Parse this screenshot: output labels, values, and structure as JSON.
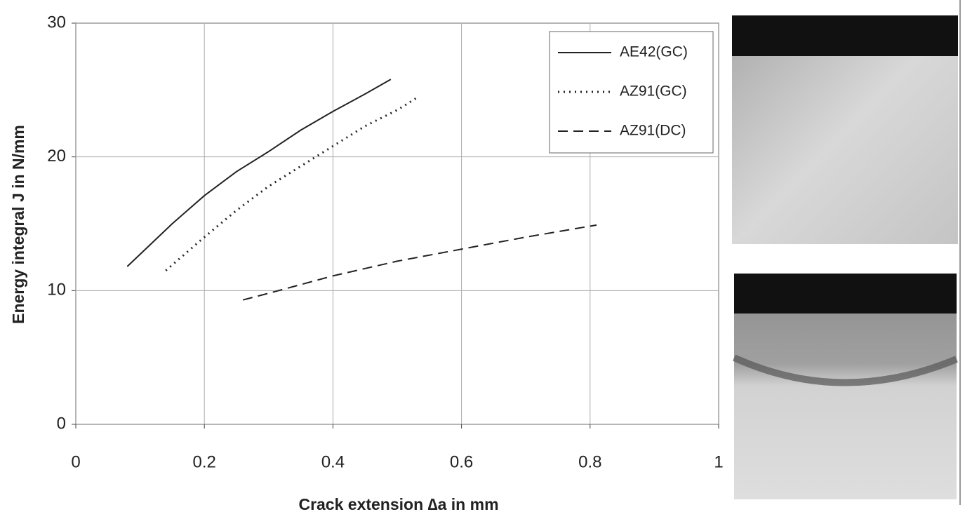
{
  "chart_data": {
    "type": "line",
    "xlabel": "Crack extension ∆a in mm",
    "ylabel": "Energy integral J in N/mm",
    "xlim": [
      0,
      1
    ],
    "xticks": [
      0,
      0.2,
      0.4,
      0.6,
      0.8,
      1
    ],
    "ylim": [
      0,
      30
    ],
    "yticks": [
      0,
      10,
      20,
      30
    ],
    "grid": true,
    "legend": "upper right",
    "series": [
      {
        "name": "AE42(GC)",
        "color": "#222222",
        "style": "solid",
        "x": [
          0.08,
          0.15,
          0.2,
          0.25,
          0.3,
          0.35,
          0.4,
          0.45,
          0.49
        ],
        "values": [
          11.8,
          15,
          17.1,
          18.9,
          20.4,
          22,
          23.4,
          24.7,
          25.8
        ]
      },
      {
        "name": "AZ91(GC)",
        "color": "#222222",
        "style": "dotted",
        "x": [
          0.14,
          0.2,
          0.25,
          0.3,
          0.35,
          0.4,
          0.45,
          0.5,
          0.53
        ],
        "values": [
          11.5,
          14,
          16,
          17.8,
          19.3,
          20.8,
          22.3,
          23.5,
          24.4
        ]
      },
      {
        "name": "AZ91(DC)",
        "color": "#222222",
        "style": "dashed",
        "x": [
          0.26,
          0.3,
          0.4,
          0.5,
          0.6,
          0.7,
          0.81
        ],
        "values": [
          9.3,
          9.8,
          11.1,
          12.2,
          13.1,
          14.0,
          14.9
        ]
      }
    ]
  }
}
